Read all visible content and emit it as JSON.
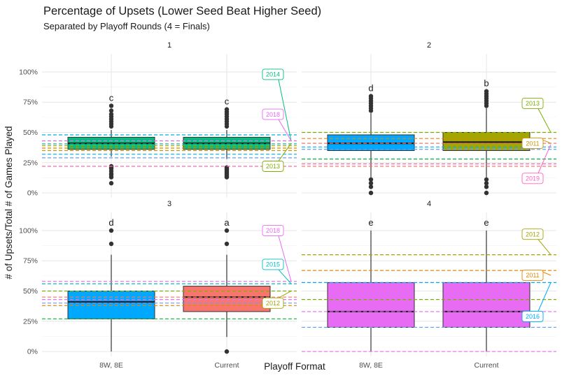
{
  "title": "Percentage of Upsets (Lower Seed Beat Higher Seed)",
  "subtitle": "Separated by Playoff Rounds (4 = Finals)",
  "chart_data": {
    "type": "boxplot",
    "title": "Percentage of Upsets (Lower Seed Beat Higher Seed)",
    "subtitle": "Separated by Playoff Rounds (4 = Finals)",
    "xlabel": "Playoff Format",
    "ylabel": "# of Upsets/Total # of Games Played",
    "categories": [
      "8W, 8E",
      "Current"
    ],
    "y_ticks": [
      "0%",
      "25%",
      "50%",
      "75%",
      "100%"
    ],
    "ylim": [
      -0.04,
      1.15
    ],
    "grid": true,
    "facets": [
      {
        "label": "1",
        "boxes": [
          {
            "category": "8W, 8E",
            "color": "#00BF7D",
            "letter": "c",
            "min": 0.3,
            "q1": 0.36,
            "median": 0.41,
            "q3": 0.46,
            "max": 0.52,
            "outliers": [
              0.08,
              0.13,
              0.15,
              0.16,
              0.18,
              0.2,
              0.21,
              0.22,
              0.55,
              0.57,
              0.59,
              0.61,
              0.63,
              0.65,
              0.68,
              0.72
            ]
          },
          {
            "category": "Current",
            "color": "#00BF7D",
            "letter": "c",
            "min": 0.28,
            "q1": 0.36,
            "median": 0.41,
            "q3": 0.46,
            "max": 0.52,
            "outliers": [
              0.13,
              0.14,
              0.15,
              0.16,
              0.17,
              0.18,
              0.19,
              0.2,
              0.21,
              0.55,
              0.57,
              0.59,
              0.61,
              0.63,
              0.65,
              0.67,
              0.69
            ]
          }
        ],
        "hlines": [
          {
            "y": 0.48,
            "color": "#00B0F6"
          },
          {
            "y": 0.43,
            "color": "#E76BF3"
          },
          {
            "y": 0.405,
            "color": "#00BF7D"
          },
          {
            "y": 0.39,
            "color": "#A3A500"
          },
          {
            "y": 0.37,
            "color": "#E58700"
          },
          {
            "y": 0.35,
            "color": "#C99800"
          },
          {
            "y": 0.32,
            "color": "#00B0F6"
          },
          {
            "y": 0.29,
            "color": "#619CFF"
          },
          {
            "y": 0.22,
            "color": "#FF67A4"
          }
        ],
        "labels": [
          {
            "text": "2014",
            "y": 0.98,
            "color": "#00BF7D",
            "target": 0.43
          },
          {
            "text": "2018",
            "y": 0.65,
            "color": "#E76BF3",
            "target": 0.43
          },
          {
            "text": "2013",
            "y": 0.22,
            "color": "#7CAE00",
            "target": 0.41
          }
        ]
      },
      {
        "label": "2",
        "boxes": [
          {
            "category": "8W, 8E",
            "color": "#00A9FF",
            "letter": "d",
            "min": 0.12,
            "q1": 0.35,
            "median": 0.41,
            "q3": 0.48,
            "max": 0.66,
            "outliers": [
              0.0,
              0.05,
              0.08,
              0.11,
              0.68,
              0.7,
              0.72,
              0.74,
              0.76,
              0.78,
              0.8
            ]
          },
          {
            "category": "Current",
            "color": "#A3A500",
            "letter": "b",
            "min": 0.12,
            "q1": 0.35,
            "median": 0.42,
            "q3": 0.5,
            "max": 0.7,
            "outliers": [
              0.0,
              0.05,
              0.08,
              0.11,
              0.72,
              0.74,
              0.76,
              0.78,
              0.8,
              0.82,
              0.84
            ]
          }
        ],
        "hlines": [
          {
            "y": 0.5,
            "color": "#7CAE00"
          },
          {
            "y": 0.45,
            "color": "#E58700"
          },
          {
            "y": 0.41,
            "color": "#F8766D"
          },
          {
            "y": 0.38,
            "color": "#00B0F6"
          },
          {
            "y": 0.36,
            "color": "#619CFF"
          },
          {
            "y": 0.28,
            "color": "#00BA38"
          },
          {
            "y": 0.24,
            "color": "#FF67A4"
          },
          {
            "y": 0.22,
            "color": "#F8766D"
          }
        ],
        "labels": [
          {
            "text": "2013",
            "y": 0.74,
            "color": "#7CAE00",
            "target": 0.5
          },
          {
            "text": "2011",
            "y": 0.41,
            "color": "#C99800",
            "target": 0.41
          },
          {
            "text": "2019",
            "y": 0.12,
            "color": "#FF61C3",
            "target": 0.4
          }
        ]
      },
      {
        "label": "3",
        "boxes": [
          {
            "category": "8W, 8E",
            "color": "#00A9FF",
            "letter": "d",
            "min": 0.0,
            "q1": 0.27,
            "median": 0.41,
            "q3": 0.5,
            "max": 0.8,
            "outliers": [
              0.89,
              1.0
            ]
          },
          {
            "category": "Current",
            "color": "#F8766D",
            "letter": "a",
            "min": 0.12,
            "q1": 0.33,
            "median": 0.45,
            "q3": 0.54,
            "max": 0.8,
            "outliers": [
              0.0,
              0.89,
              1.0
            ]
          }
        ],
        "hlines": [
          {
            "y": 0.58,
            "color": "#E76BF3"
          },
          {
            "y": 0.56,
            "color": "#00BFC4"
          },
          {
            "y": 0.5,
            "color": "#7CAE00"
          },
          {
            "y": 0.45,
            "color": "#F8766D"
          },
          {
            "y": 0.43,
            "color": "#E76BF3"
          },
          {
            "y": 0.4,
            "color": "#619CFF"
          },
          {
            "y": 0.38,
            "color": "#E58700"
          },
          {
            "y": 0.27,
            "color": "#00BA38"
          }
        ],
        "labels": [
          {
            "text": "2018",
            "y": 1.0,
            "color": "#E76BF3",
            "target": 0.58
          },
          {
            "text": "2015",
            "y": 0.72,
            "color": "#00BFC4",
            "target": 0.56
          },
          {
            "text": "2012",
            "y": 0.4,
            "color": "#A3A500",
            "target": 0.5
          }
        ]
      },
      {
        "label": "4",
        "boxes": [
          {
            "category": "8W, 8E",
            "color": "#E76BF3",
            "letter": "e",
            "min": 0.0,
            "q1": 0.2,
            "median": 0.33,
            "q3": 0.57,
            "max": 1.0,
            "outliers": []
          },
          {
            "category": "Current",
            "color": "#E76BF3",
            "letter": "e",
            "min": 0.0,
            "q1": 0.2,
            "median": 0.33,
            "q3": 0.57,
            "max": 1.0,
            "outliers": []
          }
        ],
        "hlines": [
          {
            "y": 0.8,
            "color": "#A3A500"
          },
          {
            "y": 0.67,
            "color": "#E58700"
          },
          {
            "y": 0.57,
            "color": "#00A9FF"
          },
          {
            "y": 0.43,
            "color": "#7CAE00"
          },
          {
            "y": 0.33,
            "color": "#E76BF3"
          },
          {
            "y": 0.2,
            "color": "#619CFF"
          },
          {
            "y": 0.0,
            "color": "#E76BF3"
          }
        ],
        "labels": [
          {
            "text": "2012",
            "y": 0.97,
            "color": "#A3A500",
            "target": 0.8
          },
          {
            "text": "2011",
            "y": 0.63,
            "color": "#E58700",
            "target": 0.63
          },
          {
            "text": "2016",
            "y": 0.29,
            "color": "#00A9FF",
            "target": 0.57
          }
        ]
      }
    ]
  }
}
